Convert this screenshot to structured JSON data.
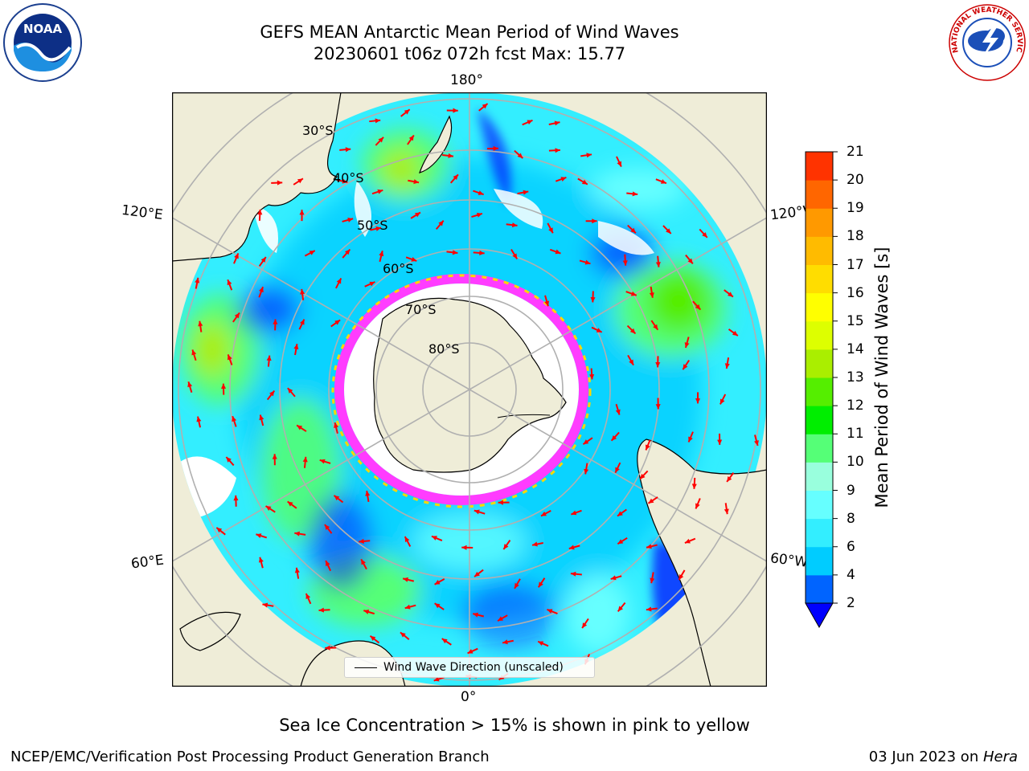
{
  "title": {
    "line1": "GEFS MEAN Antarctic Mean Period of Wind Waves",
    "line2": "20230601 t06z 072h fcst   Max: 15.77"
  },
  "map": {
    "projection": "south-polar-stereographic",
    "longitude_labels": {
      "top": "180°",
      "bottom": "0°",
      "upper_left": "120°E",
      "upper_right": "120°W",
      "lower_left": "60°E",
      "lower_right": "60°W"
    },
    "latitude_labels": [
      "30°S",
      "40°S",
      "50°S",
      "60°S",
      "70°S",
      "80°S"
    ],
    "legend_label": "Wind Wave Direction (unscaled)",
    "colors": {
      "land": "#efedd8",
      "arrow": "#ff0000",
      "grid": "#b0b0b0",
      "sea_ice_low": "#ff3cff",
      "sea_ice_high": "#ffd700"
    }
  },
  "colorbar": {
    "label": "Mean Period of Wind Waves [s]",
    "tick_labels": [
      "2",
      "4",
      "6",
      "8",
      "9",
      "10",
      "11",
      "12",
      "13",
      "14",
      "15",
      "16",
      "17",
      "18",
      "19",
      "20",
      "21"
    ],
    "levels": [
      2,
      4,
      6,
      8,
      9,
      10,
      11,
      12,
      13,
      14,
      15,
      16,
      17,
      18,
      19,
      20,
      21
    ],
    "colors": [
      "#0064ff",
      "#00ccff",
      "#33eeff",
      "#66ffff",
      "#99ffdd",
      "#55ff77",
      "#00ee00",
      "#55ee00",
      "#aaee00",
      "#ddff00",
      "#ffff00",
      "#ffdd00",
      "#ffbb00",
      "#ff9900",
      "#ff6600",
      "#ff3300"
    ],
    "extend_color": "#0000ff"
  },
  "caption": "Sea Ice Concentration > 15% is shown in pink to yellow",
  "footer": {
    "left": "NCEP/EMC/Verification Post Processing Product Generation Branch",
    "right_date": "03 Jun 2023 on ",
    "right_machine": "Hera"
  },
  "logos": {
    "noaa_text": "NOAA",
    "nws_text": "NATIONAL WEATHER SERVICE"
  }
}
